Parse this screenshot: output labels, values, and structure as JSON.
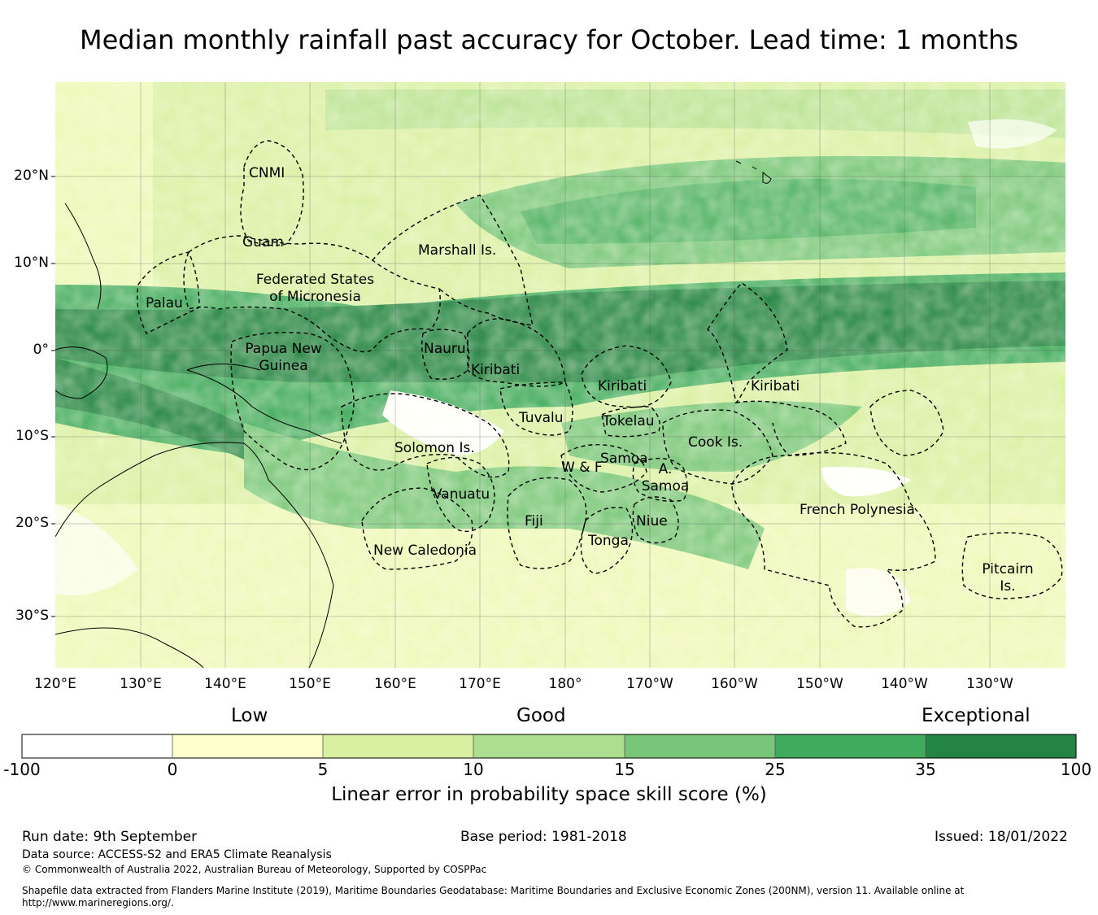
{
  "title": "Median monthly rainfall past accuracy for October. Lead time: 1 months",
  "map": {
    "lat_labels": [
      "20°N",
      "10°N",
      "0°",
      "10°S",
      "20°S",
      "30°S"
    ],
    "lon_labels": [
      "120°E",
      "130°E",
      "140°E",
      "150°E",
      "160°E",
      "170°E",
      "180°",
      "170°W",
      "160°W",
      "150°W",
      "140°W",
      "130°W"
    ],
    "regions": [
      "CNMI",
      "Guam",
      "Marshall Is.",
      "Federated States of Micronesia",
      "Palau",
      "Papua New Guinea",
      "Nauru",
      "Kiribati",
      "Kiribati",
      "Kiribati",
      "Tuvalu",
      "Tokelau",
      "Solomon Is.",
      "Cook Is.",
      "Samoa",
      "W & F",
      "A. Samoa",
      "Vanuatu",
      "Fiji",
      "Niue",
      "Tonga",
      "New Caledonia",
      "French Polynesia",
      "Pitcairn Is."
    ]
  },
  "legend": {
    "categories": [
      "Low",
      "Good",
      "Exceptional"
    ],
    "ticks": [
      "-100",
      "0",
      "5",
      "10",
      "15",
      "25",
      "35",
      "100"
    ],
    "colors": [
      "#ffffff",
      "#ffffcc",
      "#d9f0a3",
      "#addd8e",
      "#78c679",
      "#41ab5d",
      "#238443"
    ],
    "label": "Linear error in probability space skill score (%)"
  },
  "footer": {
    "run_date": "Run date: 9th September",
    "base_period": "Base period: 1981-2018",
    "issued": "Issued: 18/01/2022",
    "data_source": "Data source: ACCESS-S2 and ERA5 Climate Reanalysis",
    "copyright": "© Commonwealth of Australia 2022, Australian Bureau of Meteorology, Supported by COSPPac",
    "shapefile_line1": "Shapefile data extracted from Flanders Marine Institute (2019), Maritime Boundaries Geodatabase: Maritime Boundaries and Exclusive Economic Zones (200NM), version 11. Available online at",
    "shapefile_line2": "http://www.marineregions.org/."
  }
}
